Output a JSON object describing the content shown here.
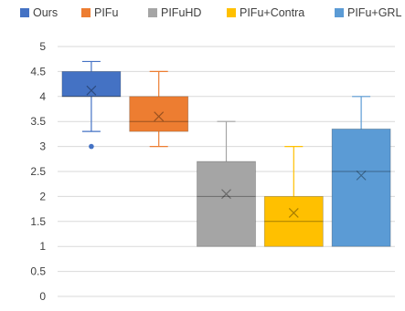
{
  "chart_data": {
    "type": "box",
    "title": "",
    "xlabel": "",
    "ylabel": "",
    "ylim": [
      0,
      5
    ],
    "yticks": [
      "0",
      "0.5",
      "1",
      "1.5",
      "2",
      "2.5",
      "3",
      "3.5",
      "4",
      "4.5",
      "5"
    ],
    "grid": true,
    "legend_position": "top",
    "series": [
      {
        "name": "Ours",
        "color": "#4472C4",
        "min": 3.3,
        "q1": 4.0,
        "median": 4.0,
        "q3": 4.5,
        "max": 4.7,
        "mean": 4.12,
        "outliers": [
          3.0
        ]
      },
      {
        "name": "PIFu",
        "color": "#ED7D31",
        "min": 3.0,
        "q1": 3.3,
        "median": 3.5,
        "q3": 4.0,
        "max": 4.5,
        "mean": 3.6,
        "outliers": []
      },
      {
        "name": "PIFuHD",
        "color": "#A5A5A5",
        "min": 1.0,
        "q1": 1.0,
        "median": 2.0,
        "q3": 2.7,
        "max": 3.5,
        "mean": 2.05,
        "outliers": []
      },
      {
        "name": "PIFu+Contra",
        "color": "#FFC000",
        "min": 1.0,
        "q1": 1.0,
        "median": 1.5,
        "q3": 2.0,
        "max": 3.0,
        "mean": 1.67,
        "outliers": []
      },
      {
        "name": "PIFu+GRL",
        "color": "#5B9BD5",
        "min": 1.0,
        "q1": 1.0,
        "median": 2.5,
        "q3": 3.35,
        "max": 4.0,
        "mean": 2.42,
        "outliers": []
      }
    ]
  }
}
